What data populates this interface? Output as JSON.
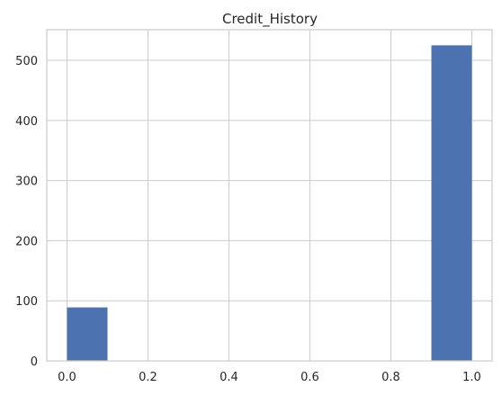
{
  "chart_data": {
    "type": "bar",
    "title": "Credit_History",
    "xlabel": "",
    "ylabel": "",
    "xlim": [
      -0.05,
      1.05
    ],
    "ylim": [
      0,
      551
    ],
    "x_ticks": [
      0.0,
      0.2,
      0.4,
      0.6,
      0.8,
      1.0
    ],
    "x_tick_labels": [
      "0.0",
      "0.2",
      "0.4",
      "0.6",
      "0.8",
      "1.0"
    ],
    "y_ticks": [
      0,
      100,
      200,
      300,
      400,
      500
    ],
    "y_tick_labels": [
      "0",
      "100",
      "200",
      "300",
      "400",
      "500"
    ],
    "grid": true,
    "bins": [
      {
        "start": 0.0,
        "end": 0.1,
        "count": 89
      },
      {
        "start": 0.1,
        "end": 0.2,
        "count": 0
      },
      {
        "start": 0.2,
        "end": 0.3,
        "count": 0
      },
      {
        "start": 0.3,
        "end": 0.4,
        "count": 0
      },
      {
        "start": 0.4,
        "end": 0.5,
        "count": 0
      },
      {
        "start": 0.5,
        "end": 0.6,
        "count": 0
      },
      {
        "start": 0.6,
        "end": 0.7,
        "count": 0
      },
      {
        "start": 0.7,
        "end": 0.8,
        "count": 0
      },
      {
        "start": 0.8,
        "end": 0.9,
        "count": 0
      },
      {
        "start": 0.9,
        "end": 1.0,
        "count": 525
      }
    ],
    "colors": {
      "bar": "#4c72b0",
      "grid": "#cccccc",
      "axis": "#cccccc",
      "text": "#262626",
      "background": "#ffffff"
    }
  }
}
